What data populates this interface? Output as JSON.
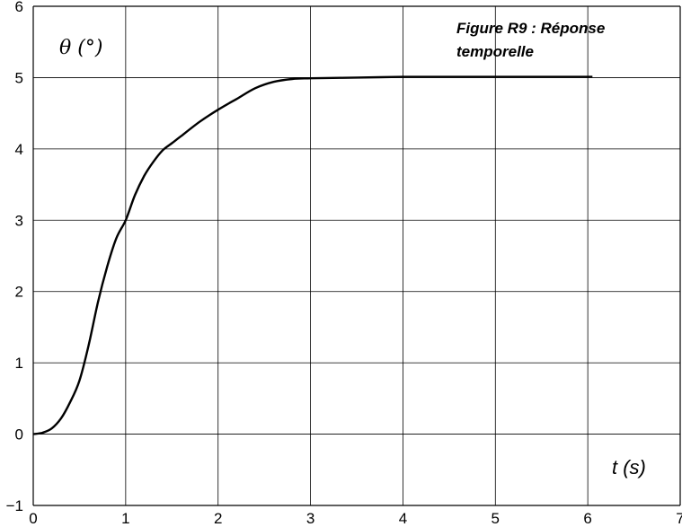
{
  "chart_data": {
    "type": "line",
    "title_lines": [
      "Figure R9 : Réponse",
      "temporelle"
    ],
    "ylabel": "θ (°)",
    "xlabel": "t (s)",
    "xlim": [
      0,
      7
    ],
    "ylim": [
      -1,
      6
    ],
    "x_ticks": [
      "0",
      "1",
      "2",
      "3",
      "4",
      "5",
      "6",
      "7"
    ],
    "y_ticks": [
      "−1",
      "0",
      "1",
      "2",
      "3",
      "4",
      "5",
      "6"
    ],
    "grid": true,
    "series": [
      {
        "color": "#000000",
        "x": [
          0,
          0.1,
          0.2,
          0.3,
          0.4,
          0.5,
          0.6,
          0.7,
          0.8,
          0.9,
          1.0,
          1.1,
          1.2,
          1.3,
          1.4,
          1.5,
          1.6,
          1.8,
          2.0,
          2.2,
          2.4,
          2.6,
          2.8,
          3.0,
          3.5,
          4.0,
          4.5,
          5.0,
          5.5,
          6.05
        ],
        "y": [
          0,
          0.02,
          0.08,
          0.22,
          0.45,
          0.75,
          1.25,
          1.85,
          2.35,
          2.75,
          3.0,
          3.35,
          3.62,
          3.82,
          3.98,
          4.08,
          4.18,
          4.38,
          4.55,
          4.7,
          4.85,
          4.94,
          4.98,
          4.99,
          5.0,
          5.01,
          5.01,
          5.01,
          5.01,
          5.01
        ]
      }
    ]
  }
}
